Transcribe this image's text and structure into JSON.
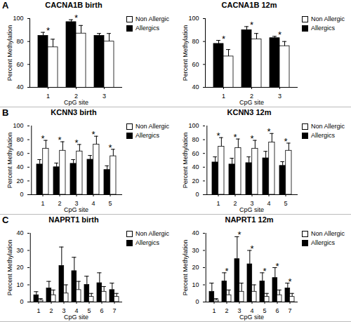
{
  "chart_data": [
    {
      "type": "bar",
      "panel": "A",
      "title": "CACNA1B birth",
      "x_label": "CpG site",
      "y_label": "Percent Methylation",
      "categories": [
        "1",
        "2",
        "3"
      ],
      "series": [
        {
          "name": "Allergics",
          "color": "#000000",
          "values": [
            85,
            97,
            85
          ],
          "error": [
            3,
            2,
            2
          ]
        },
        {
          "name": "Non Allergic",
          "color": "#ffffff",
          "values": [
            75,
            87,
            80
          ],
          "error": [
            7,
            7,
            7
          ]
        }
      ],
      "ylim": [
        40,
        100
      ],
      "yticks": [
        40,
        60,
        80,
        100
      ],
      "legend": "top-right",
      "annotations": [
        {
          "category": "1",
          "text": "*"
        },
        {
          "category": "2",
          "text": "*"
        }
      ]
    },
    {
      "type": "bar",
      "title": "CACNA1B 12m",
      "x_label": "CpG site",
      "y_label": "Percent Methylation",
      "categories": [
        "1",
        "2",
        "3"
      ],
      "series": [
        {
          "name": "Allergics",
          "color": "#000000",
          "values": [
            78,
            90,
            83
          ],
          "error": [
            3,
            3,
            1.5
          ]
        },
        {
          "name": "Non Allergic",
          "color": "#ffffff",
          "values": [
            67,
            82,
            76
          ],
          "error": [
            6,
            5,
            4
          ]
        }
      ],
      "ylim": [
        40,
        100
      ],
      "yticks": [
        40,
        60,
        80,
        100
      ],
      "legend": "top-right",
      "annotations": [
        {
          "category": "1",
          "text": "*"
        },
        {
          "category": "2",
          "text": "*"
        },
        {
          "category": "3",
          "text": "*"
        }
      ]
    },
    {
      "type": "bar",
      "panel": "B",
      "title": "KCNN3 birth",
      "x_label": "CpG site",
      "y_label": "Percent Methylation",
      "categories": [
        "1",
        "2",
        "3",
        "4",
        "5"
      ],
      "series": [
        {
          "name": "Allergics",
          "color": "#000000",
          "values": [
            44,
            40,
            45,
            51,
            36
          ],
          "error": [
            7,
            6,
            6,
            6,
            6
          ]
        },
        {
          "name": "Non Allergic",
          "color": "#ffffff",
          "values": [
            67,
            64,
            63,
            73,
            56
          ],
          "error": [
            12,
            13,
            10,
            12,
            10
          ]
        }
      ],
      "ylim": [
        0,
        100
      ],
      "yticks": [
        0,
        20,
        40,
        60,
        80,
        100
      ],
      "legend": "top-right",
      "annotations": [
        {
          "category": "1",
          "text": "*"
        },
        {
          "category": "2",
          "text": "*"
        },
        {
          "category": "3",
          "text": "*"
        },
        {
          "category": "4",
          "text": "*"
        },
        {
          "category": "5",
          "text": "*"
        }
      ]
    },
    {
      "type": "bar",
      "title": "KCNN3 12m",
      "x_label": "CpG site",
      "y_label": "Percent Methylation",
      "categories": [
        "1",
        "2",
        "3",
        "4",
        "5"
      ],
      "series": [
        {
          "name": "Allergics",
          "color": "#000000",
          "values": [
            47,
            44,
            46,
            53,
            42
          ],
          "error": [
            8,
            9,
            9,
            10,
            6
          ]
        },
        {
          "name": "Non Allergic",
          "color": "#ffffff",
          "values": [
            70,
            68,
            67,
            76,
            64
          ],
          "error": [
            13,
            13,
            12,
            13,
            11
          ]
        }
      ],
      "ylim": [
        0,
        100
      ],
      "yticks": [
        0,
        20,
        40,
        60,
        80,
        100
      ],
      "legend": "top-right",
      "annotations": [
        {
          "category": "1",
          "text": "*"
        },
        {
          "category": "2",
          "text": "*"
        },
        {
          "category": "3",
          "text": "*"
        },
        {
          "category": "4",
          "text": "*"
        },
        {
          "category": "5",
          "text": "*"
        }
      ]
    },
    {
      "type": "bar",
      "panel": "C",
      "title": "NAPRT1 birth",
      "x_label": "CpG site",
      "y_label": "Percent Methylation",
      "categories": [
        "1",
        "2",
        "3",
        "4",
        "5",
        "6",
        "7"
      ],
      "series": [
        {
          "name": "Allergics",
          "color": "#000000",
          "values": [
            4,
            8,
            21,
            18,
            10,
            11,
            7
          ],
          "error": [
            2,
            4,
            11,
            8,
            5,
            6,
            4
          ]
        },
        {
          "name": "Non Allergic",
          "color": "#ffffff",
          "values": [
            1,
            4,
            5,
            7,
            3,
            6,
            3
          ],
          "error": [
            1,
            3,
            5,
            5,
            2,
            3,
            2
          ]
        }
      ],
      "ylim": [
        0,
        40
      ],
      "yticks": [
        0,
        10,
        20,
        30,
        40
      ],
      "legend": "top-right",
      "annotations": []
    },
    {
      "type": "bar",
      "title": "NAPRT1 12m",
      "x_label": "CpG site",
      "y_label": "Percent Methylation",
      "categories": [
        "1",
        "2",
        "3",
        "4",
        "5",
        "6",
        "7"
      ],
      "series": [
        {
          "name": "Allergics",
          "color": "#000000",
          "values": [
            6,
            12,
            25,
            22,
            12,
            14,
            8
          ],
          "error": [
            5,
            5,
            13,
            8,
            5,
            6,
            3
          ]
        },
        {
          "name": "Non Allergic",
          "color": "#ffffff",
          "values": [
            1,
            4,
            6,
            6,
            3,
            4,
            3
          ],
          "error": [
            1,
            3,
            5,
            4,
            2,
            3,
            2
          ]
        }
      ],
      "ylim": [
        0,
        40
      ],
      "yticks": [
        0,
        10,
        20,
        30,
        40
      ],
      "legend": "top-right",
      "annotations": [
        {
          "category": "2",
          "text": "*"
        },
        {
          "category": "3",
          "text": "*"
        },
        {
          "category": "4",
          "text": "*"
        },
        {
          "category": "5",
          "text": "*"
        },
        {
          "category": "6",
          "text": "*"
        },
        {
          "category": "7",
          "text": "*"
        }
      ]
    }
  ]
}
